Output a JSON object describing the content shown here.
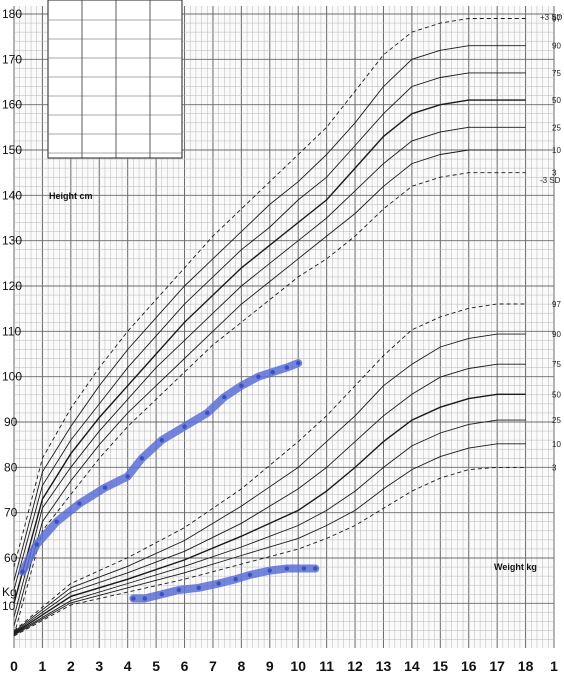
{
  "chart_data": {
    "type": "line",
    "title": "",
    "xlabel": "",
    "ylabel": "",
    "xlim": [
      0,
      19
    ],
    "ylim_height_cm": [
      0,
      180
    ],
    "x_ticks": [
      "0",
      "1",
      "2",
      "3",
      "4",
      "5",
      "6",
      "7",
      "8",
      "9",
      "10",
      "11",
      "12",
      "13",
      "14",
      "15",
      "16",
      "17",
      "18",
      "1"
    ],
    "y_ticks_height": [
      "60",
      "70",
      "80",
      "90",
      "100",
      "110",
      "120",
      "130",
      "140",
      "150",
      "160",
      "170",
      "180"
    ],
    "weight_axis_label": "Kg",
    "weight_tick": "10",
    "height_block_label": "Height cm",
    "weight_block_label": "Weight kg",
    "height_sd_labels": [
      "+3 SD",
      "-3 SD"
    ],
    "height_percentile_labels": [
      "97",
      "90",
      "75",
      "50",
      "25",
      "10",
      "3"
    ],
    "weight_percentile_labels": [
      "97",
      "90",
      "75",
      "50",
      "25",
      "10",
      "3"
    ],
    "grid": true,
    "reference_height_curves": [
      {
        "age": [
          0,
          1,
          2,
          3,
          4,
          5,
          6,
          7,
          8,
          9,
          10,
          11,
          12,
          13,
          14,
          15,
          16,
          17,
          18
        ],
        "values": [
          58,
          82,
          93,
          102,
          110,
          117,
          124,
          131,
          137,
          143,
          149,
          155,
          163,
          171,
          176,
          178,
          179,
          179,
          179
        ]
      },
      {
        "age": [
          0,
          1,
          2,
          3,
          4,
          5,
          6,
          7,
          8,
          9,
          10,
          11,
          12,
          13,
          14,
          15,
          16,
          17,
          18
        ],
        "values": [
          55,
          79,
          89,
          98,
          106,
          113,
          120,
          126,
          132,
          138,
          143,
          149,
          156,
          164,
          170,
          172,
          173,
          173,
          173
        ]
      },
      {
        "age": [
          0,
          1,
          2,
          3,
          4,
          5,
          6,
          7,
          8,
          9,
          10,
          11,
          12,
          13,
          14,
          15,
          16,
          17,
          18
        ],
        "values": [
          53,
          76,
          86,
          94,
          102,
          109,
          116,
          122,
          128,
          133,
          139,
          144,
          151,
          158,
          164,
          166,
          167,
          167,
          167
        ]
      },
      {
        "age": [
          0,
          1,
          2,
          3,
          4,
          5,
          6,
          7,
          8,
          9,
          10,
          11,
          12,
          13,
          14,
          15,
          16,
          17,
          18
        ],
        "values": [
          50,
          73,
          83,
          91,
          98,
          105,
          112,
          118,
          124,
          129,
          134,
          139,
          146,
          153,
          158,
          160,
          161,
          161,
          161
        ]
      },
      {
        "age": [
          0,
          1,
          2,
          3,
          4,
          5,
          6,
          7,
          8,
          9,
          10,
          11,
          12,
          13,
          14,
          15,
          16,
          17,
          18
        ],
        "values": [
          47,
          71,
          80,
          88,
          95,
          102,
          108,
          114,
          120,
          125,
          130,
          135,
          141,
          147,
          152,
          154,
          155,
          155,
          155
        ]
      },
      {
        "age": [
          0,
          1,
          2,
          3,
          4,
          5,
          6,
          7,
          8,
          9,
          10,
          11,
          12,
          13,
          14,
          15,
          16,
          17,
          18
        ],
        "values": [
          45,
          68,
          77,
          85,
          92,
          98,
          104,
          110,
          116,
          121,
          126,
          131,
          136,
          142,
          147,
          149,
          150,
          150,
          150
        ]
      },
      {
        "age": [
          0,
          1,
          2,
          3,
          4,
          5,
          6,
          7,
          8,
          9,
          10,
          11,
          12,
          13,
          14,
          15,
          16,
          17,
          18
        ],
        "values": [
          43,
          66,
          74,
          82,
          89,
          95,
          101,
          107,
          112,
          117,
          122,
          126,
          131,
          137,
          142,
          144,
          145,
          145,
          145
        ]
      }
    ],
    "reference_weight_curves": [
      {
        "age": [
          0,
          2,
          4,
          6,
          8,
          10,
          11,
          12,
          13,
          14,
          15,
          16,
          17,
          18
        ],
        "values": [
          4,
          15,
          21,
          28,
          37,
          48,
          54,
          61,
          68,
          74,
          77,
          79,
          80,
          80
        ]
      },
      {
        "age": [
          0,
          2,
          4,
          6,
          8,
          10,
          11,
          12,
          13,
          14,
          15,
          16,
          17,
          18
        ],
        "values": [
          3.8,
          14,
          19,
          25,
          33,
          42,
          48,
          54,
          61,
          66,
          70,
          72,
          73,
          73
        ]
      },
      {
        "age": [
          0,
          2,
          4,
          6,
          8,
          10,
          11,
          12,
          13,
          14,
          15,
          16,
          17,
          18
        ],
        "values": [
          3.6,
          13,
          17.5,
          22.5,
          29,
          37,
          42,
          48,
          54,
          59,
          63,
          65,
          66,
          66
        ]
      },
      {
        "age": [
          0,
          2,
          4,
          6,
          8,
          10,
          11,
          12,
          13,
          14,
          15,
          16,
          17,
          18
        ],
        "values": [
          3.4,
          12,
          16,
          20.5,
          26,
          32,
          36.5,
          42,
          48,
          53,
          56,
          58,
          59,
          59
        ]
      },
      {
        "age": [
          0,
          2,
          4,
          6,
          8,
          10,
          11,
          12,
          13,
          14,
          15,
          16,
          17,
          18
        ],
        "values": [
          3.2,
          11,
          15,
          19,
          23.5,
          28.5,
          32,
          36.5,
          42,
          47,
          50,
          52,
          53,
          53
        ]
      },
      {
        "age": [
          0,
          2,
          4,
          6,
          8,
          10,
          11,
          12,
          13,
          14,
          15,
          16,
          17,
          18
        ],
        "values": [
          3.0,
          10.5,
          14,
          17.5,
          21.5,
          25.5,
          28.5,
          32,
          37,
          41.5,
          44.5,
          46.5,
          47.5,
          47.5
        ]
      },
      {
        "age": [
          0,
          2,
          4,
          6,
          8,
          10,
          11,
          12,
          13,
          14,
          15,
          16,
          17,
          18
        ],
        "values": [
          2.8,
          10,
          13,
          16,
          19.5,
          23,
          25.5,
          28.5,
          32.5,
          36.5,
          39.5,
          41.5,
          42,
          42
        ]
      }
    ],
    "series": [
      {
        "age": [
          0.3,
          0.8,
          1.5,
          2.3,
          3.2,
          4.0,
          4.5,
          5.2,
          6.0,
          6.8,
          7.4,
          8.0,
          8.6,
          9.1,
          9.6,
          10.0
        ],
        "height_cm": [
          57,
          63,
          68,
          72,
          75.5,
          78,
          82,
          86,
          89,
          92,
          95.5,
          98,
          100,
          101,
          102,
          103
        ]
      },
      {
        "age": [
          4.2,
          4.6,
          5.2,
          5.8,
          6.5,
          7.2,
          7.8,
          8.3,
          9.0,
          9.6,
          10.2,
          10.6
        ],
        "weight_kg": [
          11.5,
          11.5,
          12.5,
          13.5,
          14,
          15,
          16,
          17,
          18,
          18.5,
          18.5,
          18.5
        ]
      }
    ],
    "colors": {
      "grid_minor": "#b8b8b8",
      "grid_major": "#6a6a6a",
      "reference_curve": "#1a1a1a",
      "patient_series": "#5b6fd6"
    }
  }
}
